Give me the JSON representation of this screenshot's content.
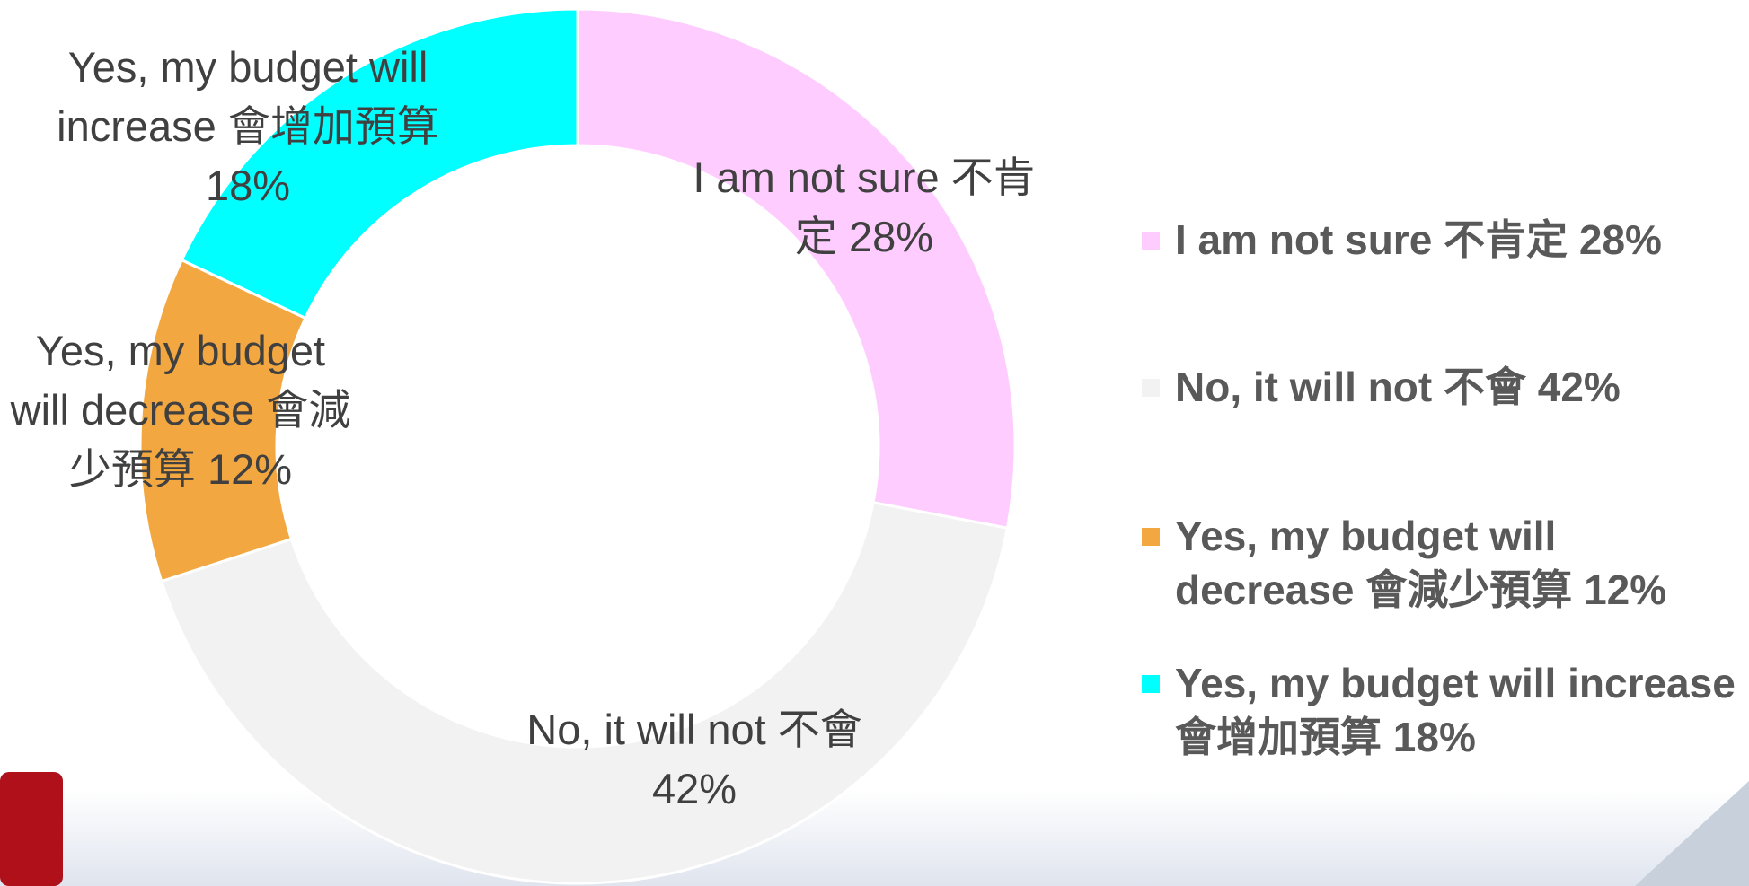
{
  "chart_data": {
    "type": "donut",
    "categories": [
      "I am not sure 不肯定",
      "No, it will not 不會",
      "Yes, my budget will decrease 會減少預算",
      "Yes, my budget will increase 會增加預算"
    ],
    "values": [
      28,
      42,
      12,
      18
    ],
    "value_labels": [
      "28%",
      "42%",
      "12%",
      "18%"
    ],
    "colors": [
      "#ffccff",
      "#f2f2f2",
      "#f2a740",
      "#00ffff"
    ],
    "legend": "right"
  }
}
